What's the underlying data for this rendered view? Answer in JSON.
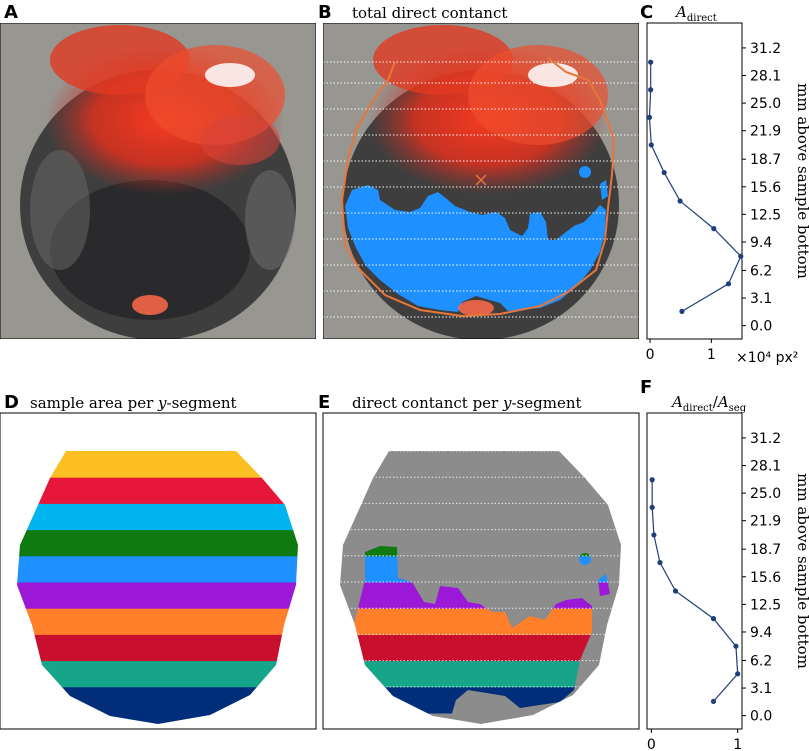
{
  "panels": {
    "A": {
      "label": "A"
    },
    "B": {
      "label": "B",
      "title": "total direct contanct"
    },
    "C": {
      "label": "C",
      "title_main": "A",
      "title_sub": "direct",
      "xunit": "×10⁴ px²"
    },
    "D": {
      "label": "D",
      "title_pre": "sample area per ",
      "title_var": "y",
      "title_post": "-segment"
    },
    "E": {
      "label": "E",
      "title_pre": "direct contanct per ",
      "title_var": "y",
      "title_post": "-segment"
    },
    "F": {
      "label": "F",
      "title_num": "A",
      "title_num_sub": "direct",
      "title_den": "A",
      "title_den_sub": "seg"
    }
  },
  "colors": {
    "line": "#1f3f7a",
    "contact": "#1e90ff",
    "outline": "#e8763a",
    "grey": "#8c8c8c",
    "segments": [
      "#002e7a",
      "#17a589",
      "#c8102e",
      "#ff7f2a",
      "#9b19d6",
      "#1e90ff",
      "#0f7a0f",
      "#00b4f0",
      "#e6173b",
      "#fcbf22"
    ]
  },
  "chart_data": [
    {
      "type": "line",
      "panel": "C",
      "title": "A_direct",
      "xlabel": "×10^4 px²",
      "ylabel": "mm above sample bottom",
      "xlim": [
        -0.05,
        1.5
      ],
      "ylim": [
        -1.5,
        34
      ],
      "xticks": [
        "0",
        "1"
      ],
      "yticks": [
        "0.0",
        "3.1",
        "6.2",
        "9.4",
        "12.5",
        "15.6",
        "18.7",
        "21.9",
        "25.0",
        "28.1",
        "31.2"
      ],
      "x": [
        0.52,
        1.28,
        1.48,
        1.04,
        0.49,
        0.23,
        0.02,
        -0.01,
        0.01,
        0.01
      ],
      "y": [
        1.6,
        4.7,
        7.8,
        10.9,
        14.0,
        17.2,
        20.3,
        23.4,
        26.5,
        29.6
      ]
    },
    {
      "type": "line",
      "panel": "F",
      "title": "A_direct/A_seg",
      "ylabel": "mm above sample bottom",
      "xlim": [
        -0.05,
        1.05
      ],
      "ylim": [
        -1.5,
        34
      ],
      "xticks": [
        "0",
        "1"
      ],
      "yticks": [
        "0.0",
        "3.1",
        "6.2",
        "9.4",
        "12.5",
        "15.6",
        "18.7",
        "21.9",
        "25.0",
        "28.1",
        "31.2"
      ],
      "x": [
        0.72,
        1.0,
        0.98,
        0.72,
        0.28,
        0.1,
        0.03,
        0.01,
        0.01
      ],
      "y": [
        1.6,
        4.7,
        7.8,
        10.9,
        14.0,
        17.2,
        20.3,
        23.4,
        26.5
      ]
    }
  ]
}
